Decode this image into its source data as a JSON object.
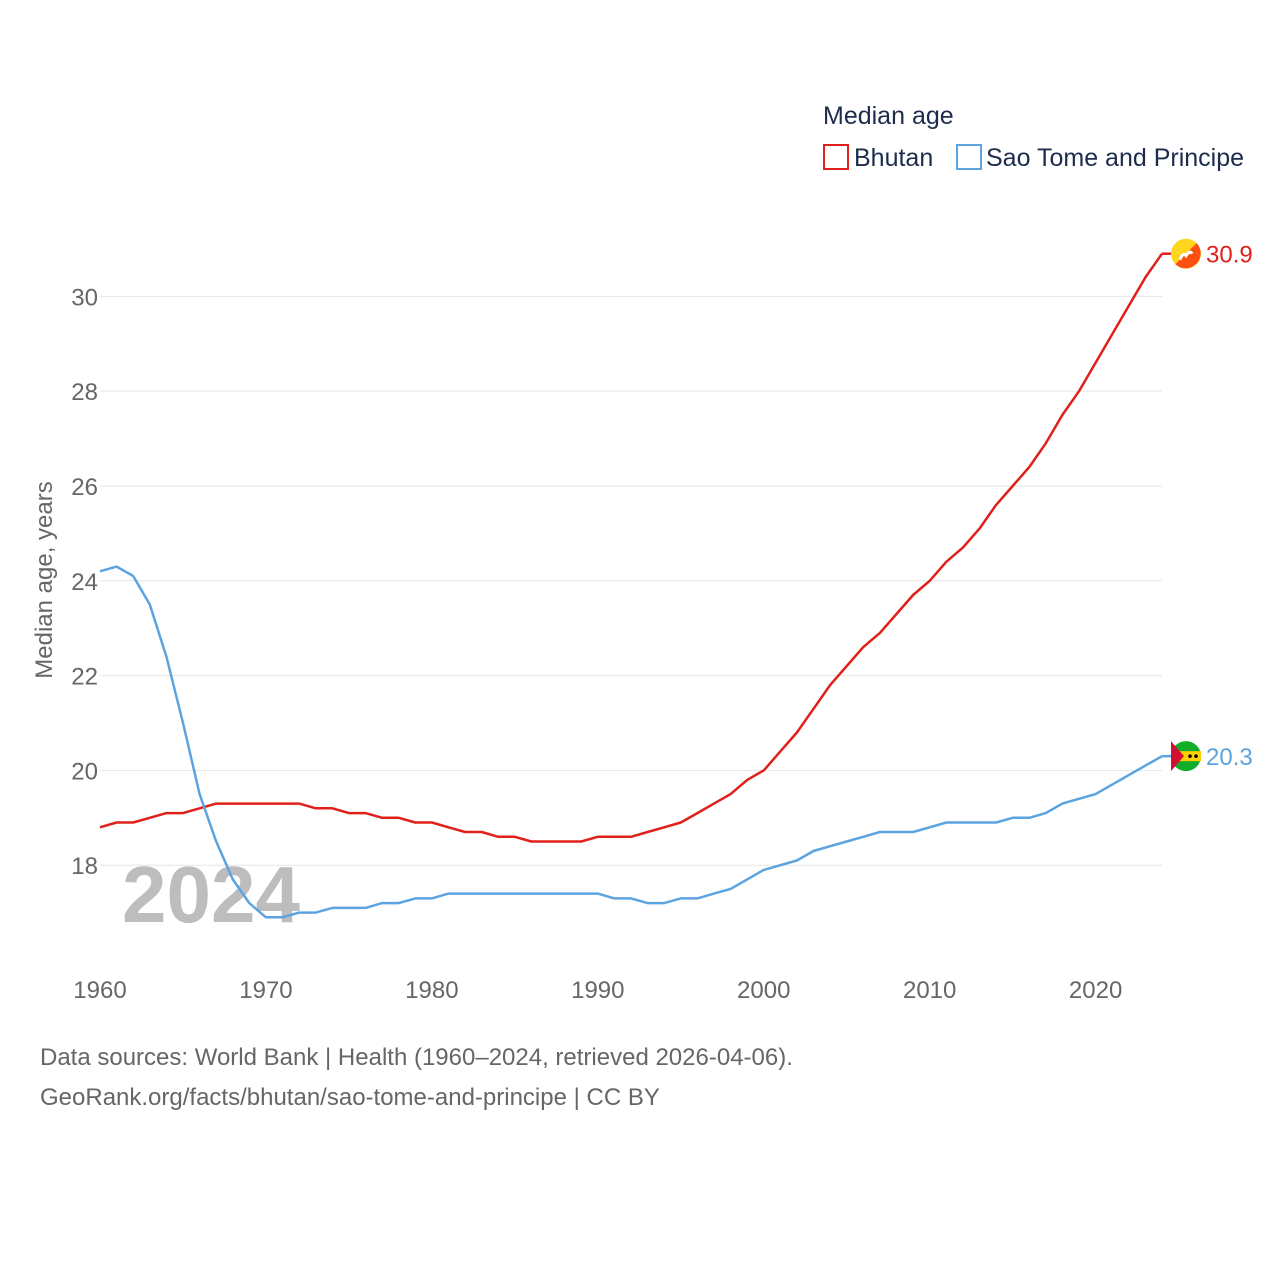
{
  "chart_data": {
    "type": "line",
    "title": "",
    "legend_title": "Median age",
    "legend_position": "top-right",
    "ylabel": "Median age, years",
    "xlabel": "",
    "year_label": "2024",
    "ylim": [
      16.0,
      31.4
    ],
    "xlim": [
      1960,
      2024
    ],
    "x_ticks": [
      1960,
      1970,
      1980,
      1990,
      2000,
      2010,
      2020
    ],
    "y_ticks": [
      18,
      20,
      22,
      24,
      26,
      28,
      30
    ],
    "grid": true,
    "x": [
      1960,
      1961,
      1962,
      1963,
      1964,
      1965,
      1966,
      1967,
      1968,
      1969,
      1970,
      1971,
      1972,
      1973,
      1974,
      1975,
      1976,
      1977,
      1978,
      1979,
      1980,
      1981,
      1982,
      1983,
      1984,
      1985,
      1986,
      1987,
      1988,
      1989,
      1990,
      1991,
      1992,
      1993,
      1994,
      1995,
      1996,
      1997,
      1998,
      1999,
      2000,
      2001,
      2002,
      2003,
      2004,
      2005,
      2006,
      2007,
      2008,
      2009,
      2010,
      2011,
      2012,
      2013,
      2014,
      2015,
      2016,
      2017,
      2018,
      2019,
      2020,
      2021,
      2022,
      2023,
      2024
    ],
    "series": [
      {
        "name": "Bhutan",
        "color": "#e0201a",
        "end_label": "30.9",
        "flag": "bhutan-flag",
        "values": [
          18.8,
          18.9,
          18.9,
          19.0,
          19.1,
          19.1,
          19.2,
          19.3,
          19.3,
          19.3,
          19.3,
          19.3,
          19.3,
          19.2,
          19.2,
          19.1,
          19.1,
          19.0,
          19.0,
          18.9,
          18.9,
          18.8,
          18.7,
          18.7,
          18.6,
          18.6,
          18.5,
          18.5,
          18.5,
          18.5,
          18.6,
          18.6,
          18.6,
          18.7,
          18.8,
          18.9,
          19.1,
          19.3,
          19.5,
          19.8,
          20.0,
          20.4,
          20.8,
          21.3,
          21.8,
          22.2,
          22.6,
          22.9,
          23.3,
          23.7,
          24.0,
          24.4,
          24.7,
          25.1,
          25.6,
          26.0,
          26.4,
          26.9,
          27.5,
          28.0,
          28.6,
          29.2,
          29.8,
          30.4,
          30.9
        ]
      },
      {
        "name": "Sao Tome and Principe",
        "color": "#5ba4e0",
        "end_label": "20.3",
        "flag": "sao-tome-flag",
        "values": [
          24.2,
          24.3,
          24.1,
          23.5,
          22.4,
          21.0,
          19.5,
          18.5,
          17.7,
          17.2,
          16.9,
          16.9,
          17.0,
          17.0,
          17.1,
          17.1,
          17.1,
          17.2,
          17.2,
          17.3,
          17.3,
          17.4,
          17.4,
          17.4,
          17.4,
          17.4,
          17.4,
          17.4,
          17.4,
          17.4,
          17.4,
          17.3,
          17.3,
          17.2,
          17.2,
          17.3,
          17.3,
          17.4,
          17.5,
          17.7,
          17.9,
          18.0,
          18.1,
          18.3,
          18.4,
          18.5,
          18.6,
          18.7,
          18.7,
          18.7,
          18.8,
          18.9,
          18.9,
          18.9,
          18.9,
          19.0,
          19.0,
          19.1,
          19.3,
          19.4,
          19.5,
          19.7,
          19.9,
          20.1,
          20.3
        ]
      }
    ]
  },
  "footer": {
    "source_line": "Data sources: World Bank | Health (1960–2024, retrieved 2026-04-06).",
    "credit_line": "GeoRank.org/facts/bhutan/sao-tome-and-principe | CC BY"
  }
}
